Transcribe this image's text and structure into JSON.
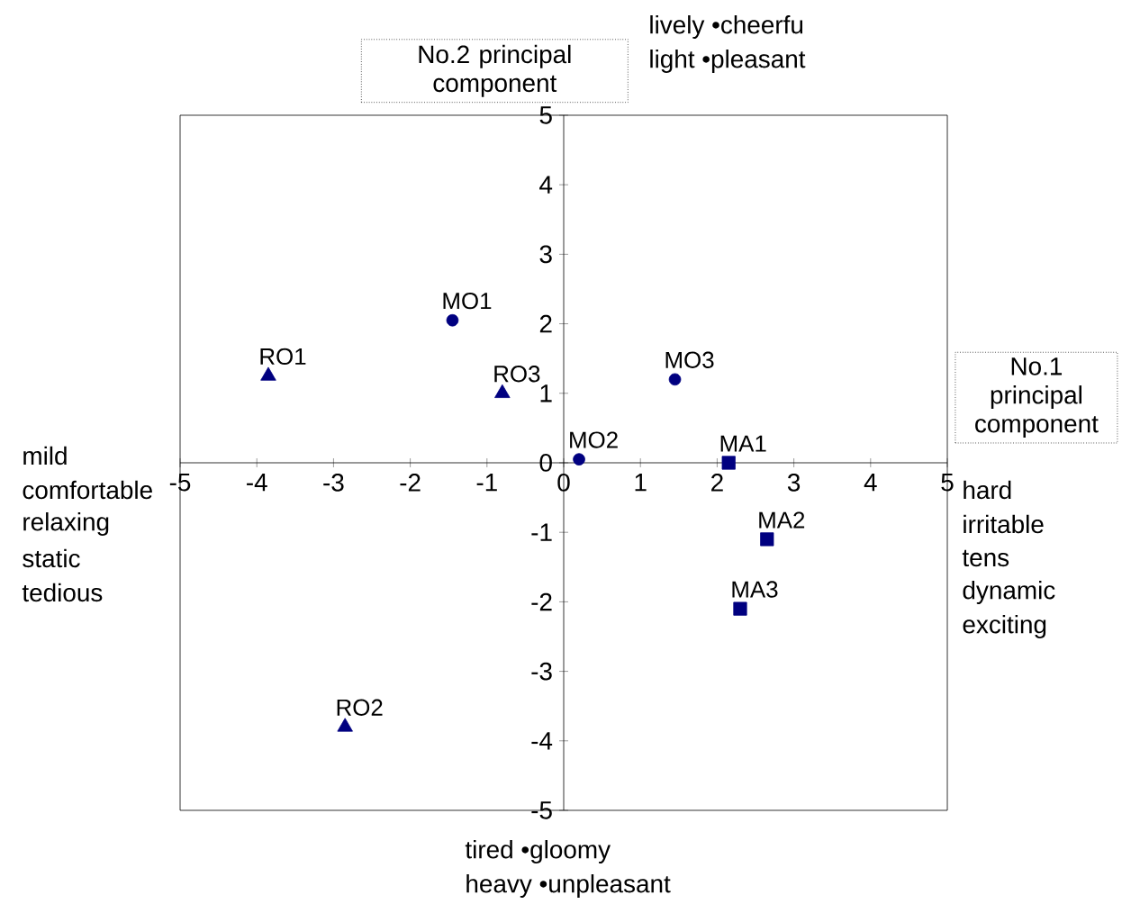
{
  "chart_data": {
    "type": "scatter",
    "xlabel": "No.1 principal component",
    "ylabel": "No.2 principal component",
    "series": [
      {
        "color": "#000080",
        "marker": "circle",
        "x": [
          -1.45,
          0.2,
          1.45
        ],
        "values": [
          2.05,
          0.05,
          1.2
        ]
      },
      {
        "color": "#000080",
        "marker": "triangle",
        "x": [
          -3.85,
          -2.85,
          -0.8
        ],
        "values": [
          1.25,
          -3.8,
          1.0
        ]
      },
      {
        "color": "#000080",
        "marker": "square",
        "x": [
          2.15,
          2.65,
          2.3
        ],
        "values": [
          0.0,
          -1.1,
          -2.1
        ]
      }
    ],
    "xlim": [
      -5,
      5
    ],
    "ylim": [
      -5,
      5
    ],
    "xticks": [
      -5,
      -4,
      -3,
      -2,
      -1,
      0,
      1,
      2,
      3,
      4,
      5
    ],
    "yticks": [
      -5,
      -4,
      -3,
      -2,
      -1,
      0,
      1,
      2,
      3,
      4,
      5
    ],
    "grid": false,
    "annotations": [
      {
        "text": "MO1",
        "x": -1.45,
        "y": 2.05
      },
      {
        "text": "MO2",
        "x": 0.2,
        "y": 0.05
      },
      {
        "text": "MO3",
        "x": 1.45,
        "y": 1.2
      },
      {
        "text": "RO1",
        "x": -3.85,
        "y": 1.25
      },
      {
        "text": "RO2",
        "x": -2.85,
        "y": -3.8
      },
      {
        "text": "RO3",
        "x": -0.8,
        "y": 1.0
      },
      {
        "text": "MA1",
        "x": 2.15,
        "y": 0.0
      },
      {
        "text": "MA2",
        "x": 2.65,
        "y": -1.1
      },
      {
        "text": "MA3",
        "x": 2.3,
        "y": -2.1
      },
      "lively •cheerfu",
      "light •pleasant",
      "mild",
      "comfortable",
      "relaxing",
      "static",
      "tedious",
      "hard",
      "irritable",
      "tens",
      "dynamic",
      "exciting",
      "tired •gloomy",
      "heavy •unpleasant"
    ]
  }
}
